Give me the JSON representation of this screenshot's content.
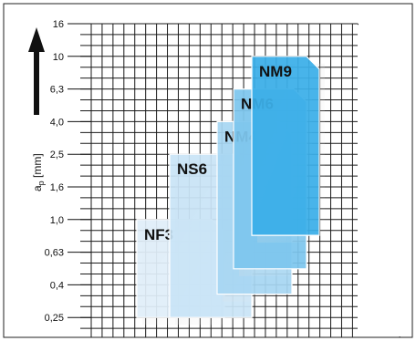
{
  "chart_data": {
    "type": "area",
    "ylabel": "a",
    "ylabel_sub": "p",
    "ylabel_unit": " [mm]",
    "y_scale": "log",
    "y_ticks": [
      "16",
      "10",
      "6,3",
      "4,0",
      "2,5",
      "1,6",
      "1,0",
      "0,63",
      "0,4",
      "0,25"
    ],
    "grid": true,
    "regions": [
      {
        "name": "NF3",
        "color": "#dfeef9",
        "ap_range": [
          0.25,
          1.0
        ]
      },
      {
        "name": "NS6",
        "color": "#c9e4f6",
        "ap_range": [
          0.25,
          2.5
        ]
      },
      {
        "name": "NM4",
        "color": "#a6d6f2",
        "ap_range": [
          0.35,
          4.0
        ]
      },
      {
        "name": "NM6",
        "color": "#7cc6ee",
        "ap_range": [
          0.5,
          6.3
        ]
      },
      {
        "name": "NM9",
        "color": "#38aee8",
        "ap_range": [
          0.8,
          10
        ]
      }
    ]
  }
}
